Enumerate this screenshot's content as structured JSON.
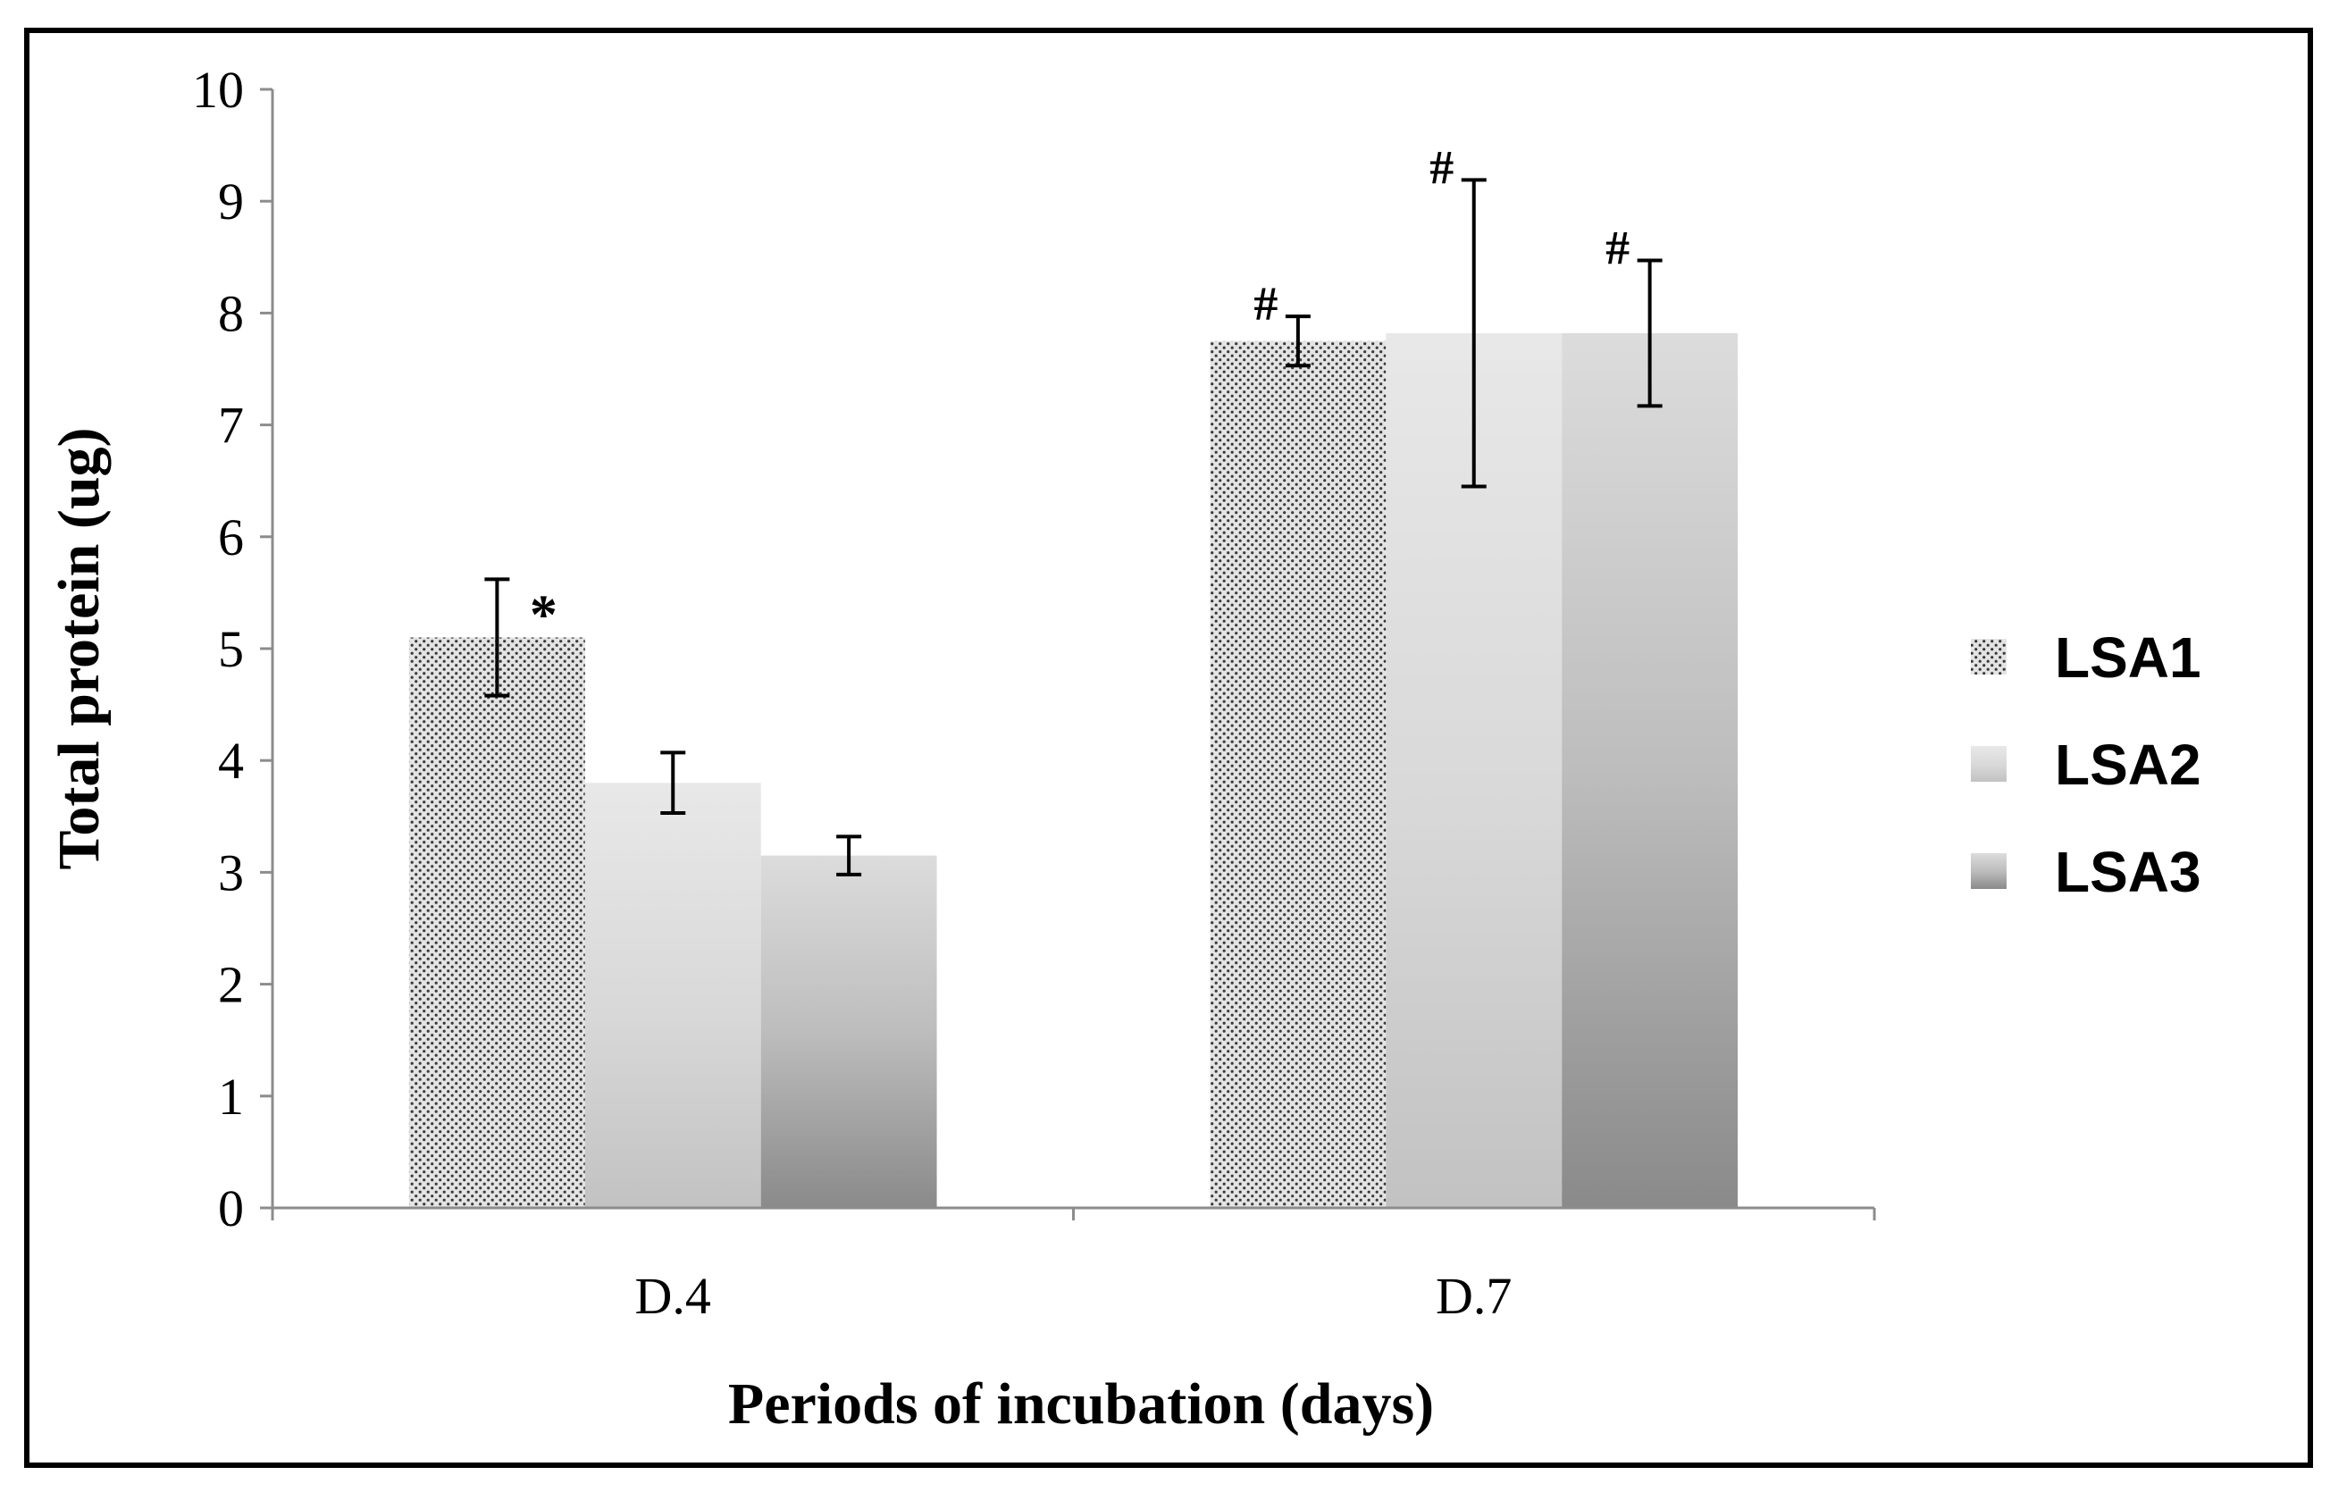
{
  "chart_data": {
    "type": "bar",
    "title": "",
    "xlabel": "Periods of incubation (days)",
    "ylabel": "Total protein (ug)",
    "ylim": [
      0,
      10
    ],
    "yticks": [
      "0",
      "1",
      "2",
      "3",
      "4",
      "5",
      "6",
      "7",
      "8",
      "9",
      "10"
    ],
    "categories": [
      "D.4",
      "D.7"
    ],
    "series": [
      {
        "name": "LSA1",
        "values": [
          5.1,
          7.75
        ],
        "errors": [
          0.52,
          0.22
        ],
        "annotations": [
          "*",
          "#"
        ]
      },
      {
        "name": "LSA2",
        "values": [
          3.8,
          7.82
        ],
        "errors": [
          0.27,
          1.37
        ],
        "annotations": [
          "",
          "#"
        ]
      },
      {
        "name": "LSA3",
        "values": [
          3.15,
          7.82
        ],
        "errors": [
          0.17,
          0.65
        ],
        "annotations": [
          "",
          "#"
        ]
      }
    ],
    "legend_position": "right",
    "grid": false
  }
}
